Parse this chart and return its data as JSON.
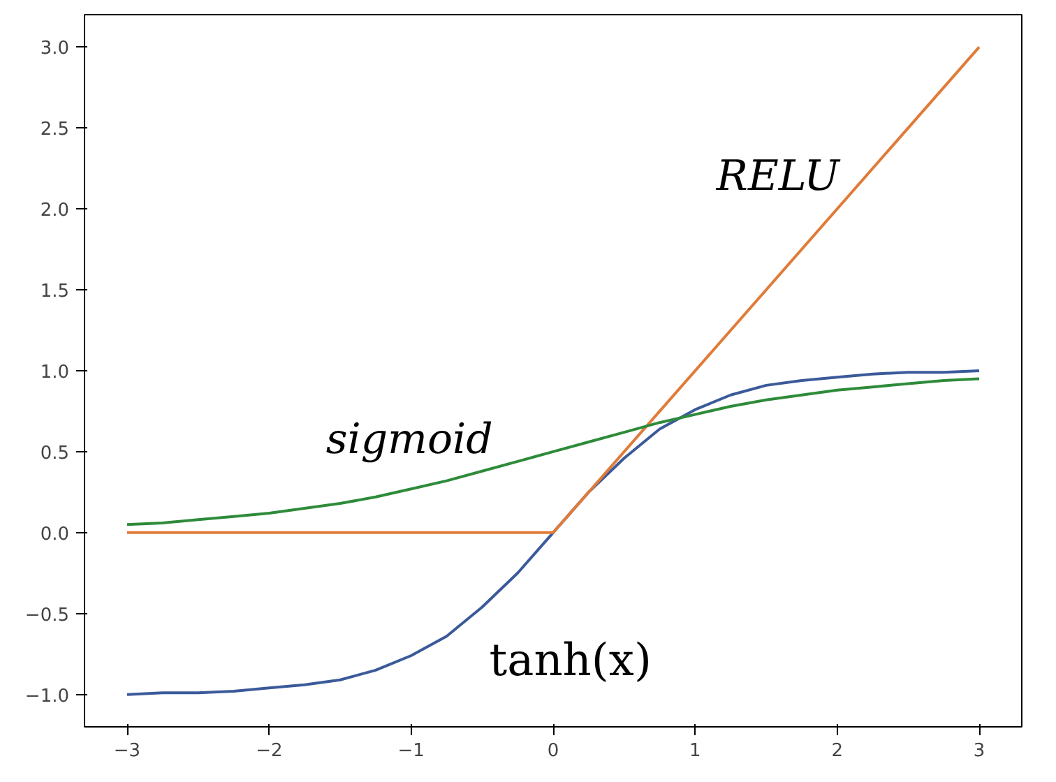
{
  "chart_data": {
    "type": "line",
    "xlim": [
      -3.3,
      3.3
    ],
    "ylim": [
      -1.2,
      3.2
    ],
    "xticks": [
      -3,
      -2,
      -1,
      0,
      1,
      2,
      3
    ],
    "yticks": [
      {
        "value": -1,
        "label": "−1.0"
      },
      {
        "value": -0.5,
        "label": "−0.5"
      },
      {
        "value": 0,
        "label": "0.0"
      },
      {
        "value": 0.5,
        "label": "0.5"
      },
      {
        "value": 1,
        "label": "1.0"
      },
      {
        "value": 1.5,
        "label": "1.5"
      },
      {
        "value": 2,
        "label": "2.0"
      },
      {
        "value": 2.5,
        "label": "2.5"
      },
      {
        "value": 3,
        "label": "3.0"
      }
    ],
    "grid": false,
    "marker": "none",
    "line_style": "solid",
    "x": [
      -3,
      -2.75,
      -2.5,
      -2.25,
      -2,
      -1.75,
      -1.5,
      -1.25,
      -1,
      -0.75,
      -0.5,
      -0.25,
      0,
      0.25,
      0.5,
      0.75,
      1,
      1.25,
      1.5,
      1.75,
      2,
      2.25,
      2.5,
      2.75,
      3
    ],
    "series": [
      {
        "name": "tanh(x)",
        "color": "#3b5a9a",
        "values": [
          -1.0,
          -0.99,
          -0.99,
          -0.98,
          -0.96,
          -0.94,
          -0.91,
          -0.85,
          -0.76,
          -0.64,
          -0.46,
          -0.25,
          0,
          0.25,
          0.46,
          0.64,
          0.76,
          0.85,
          0.91,
          0.94,
          0.96,
          0.98,
          0.99,
          0.99,
          1.0
        ]
      },
      {
        "name": "RELU",
        "color": "#e07b39",
        "x": [
          -3,
          0,
          3
        ],
        "values": [
          0,
          0,
          3
        ]
      },
      {
        "name": "sigmoid",
        "color": "#2e8b3a",
        "values": [
          0.05,
          0.06,
          0.08,
          0.1,
          0.12,
          0.15,
          0.18,
          0.22,
          0.27,
          0.32,
          0.38,
          0.44,
          0.5,
          0.56,
          0.62,
          0.68,
          0.73,
          0.78,
          0.82,
          0.85,
          0.88,
          0.9,
          0.92,
          0.94,
          0.95
        ]
      }
    ]
  }
}
